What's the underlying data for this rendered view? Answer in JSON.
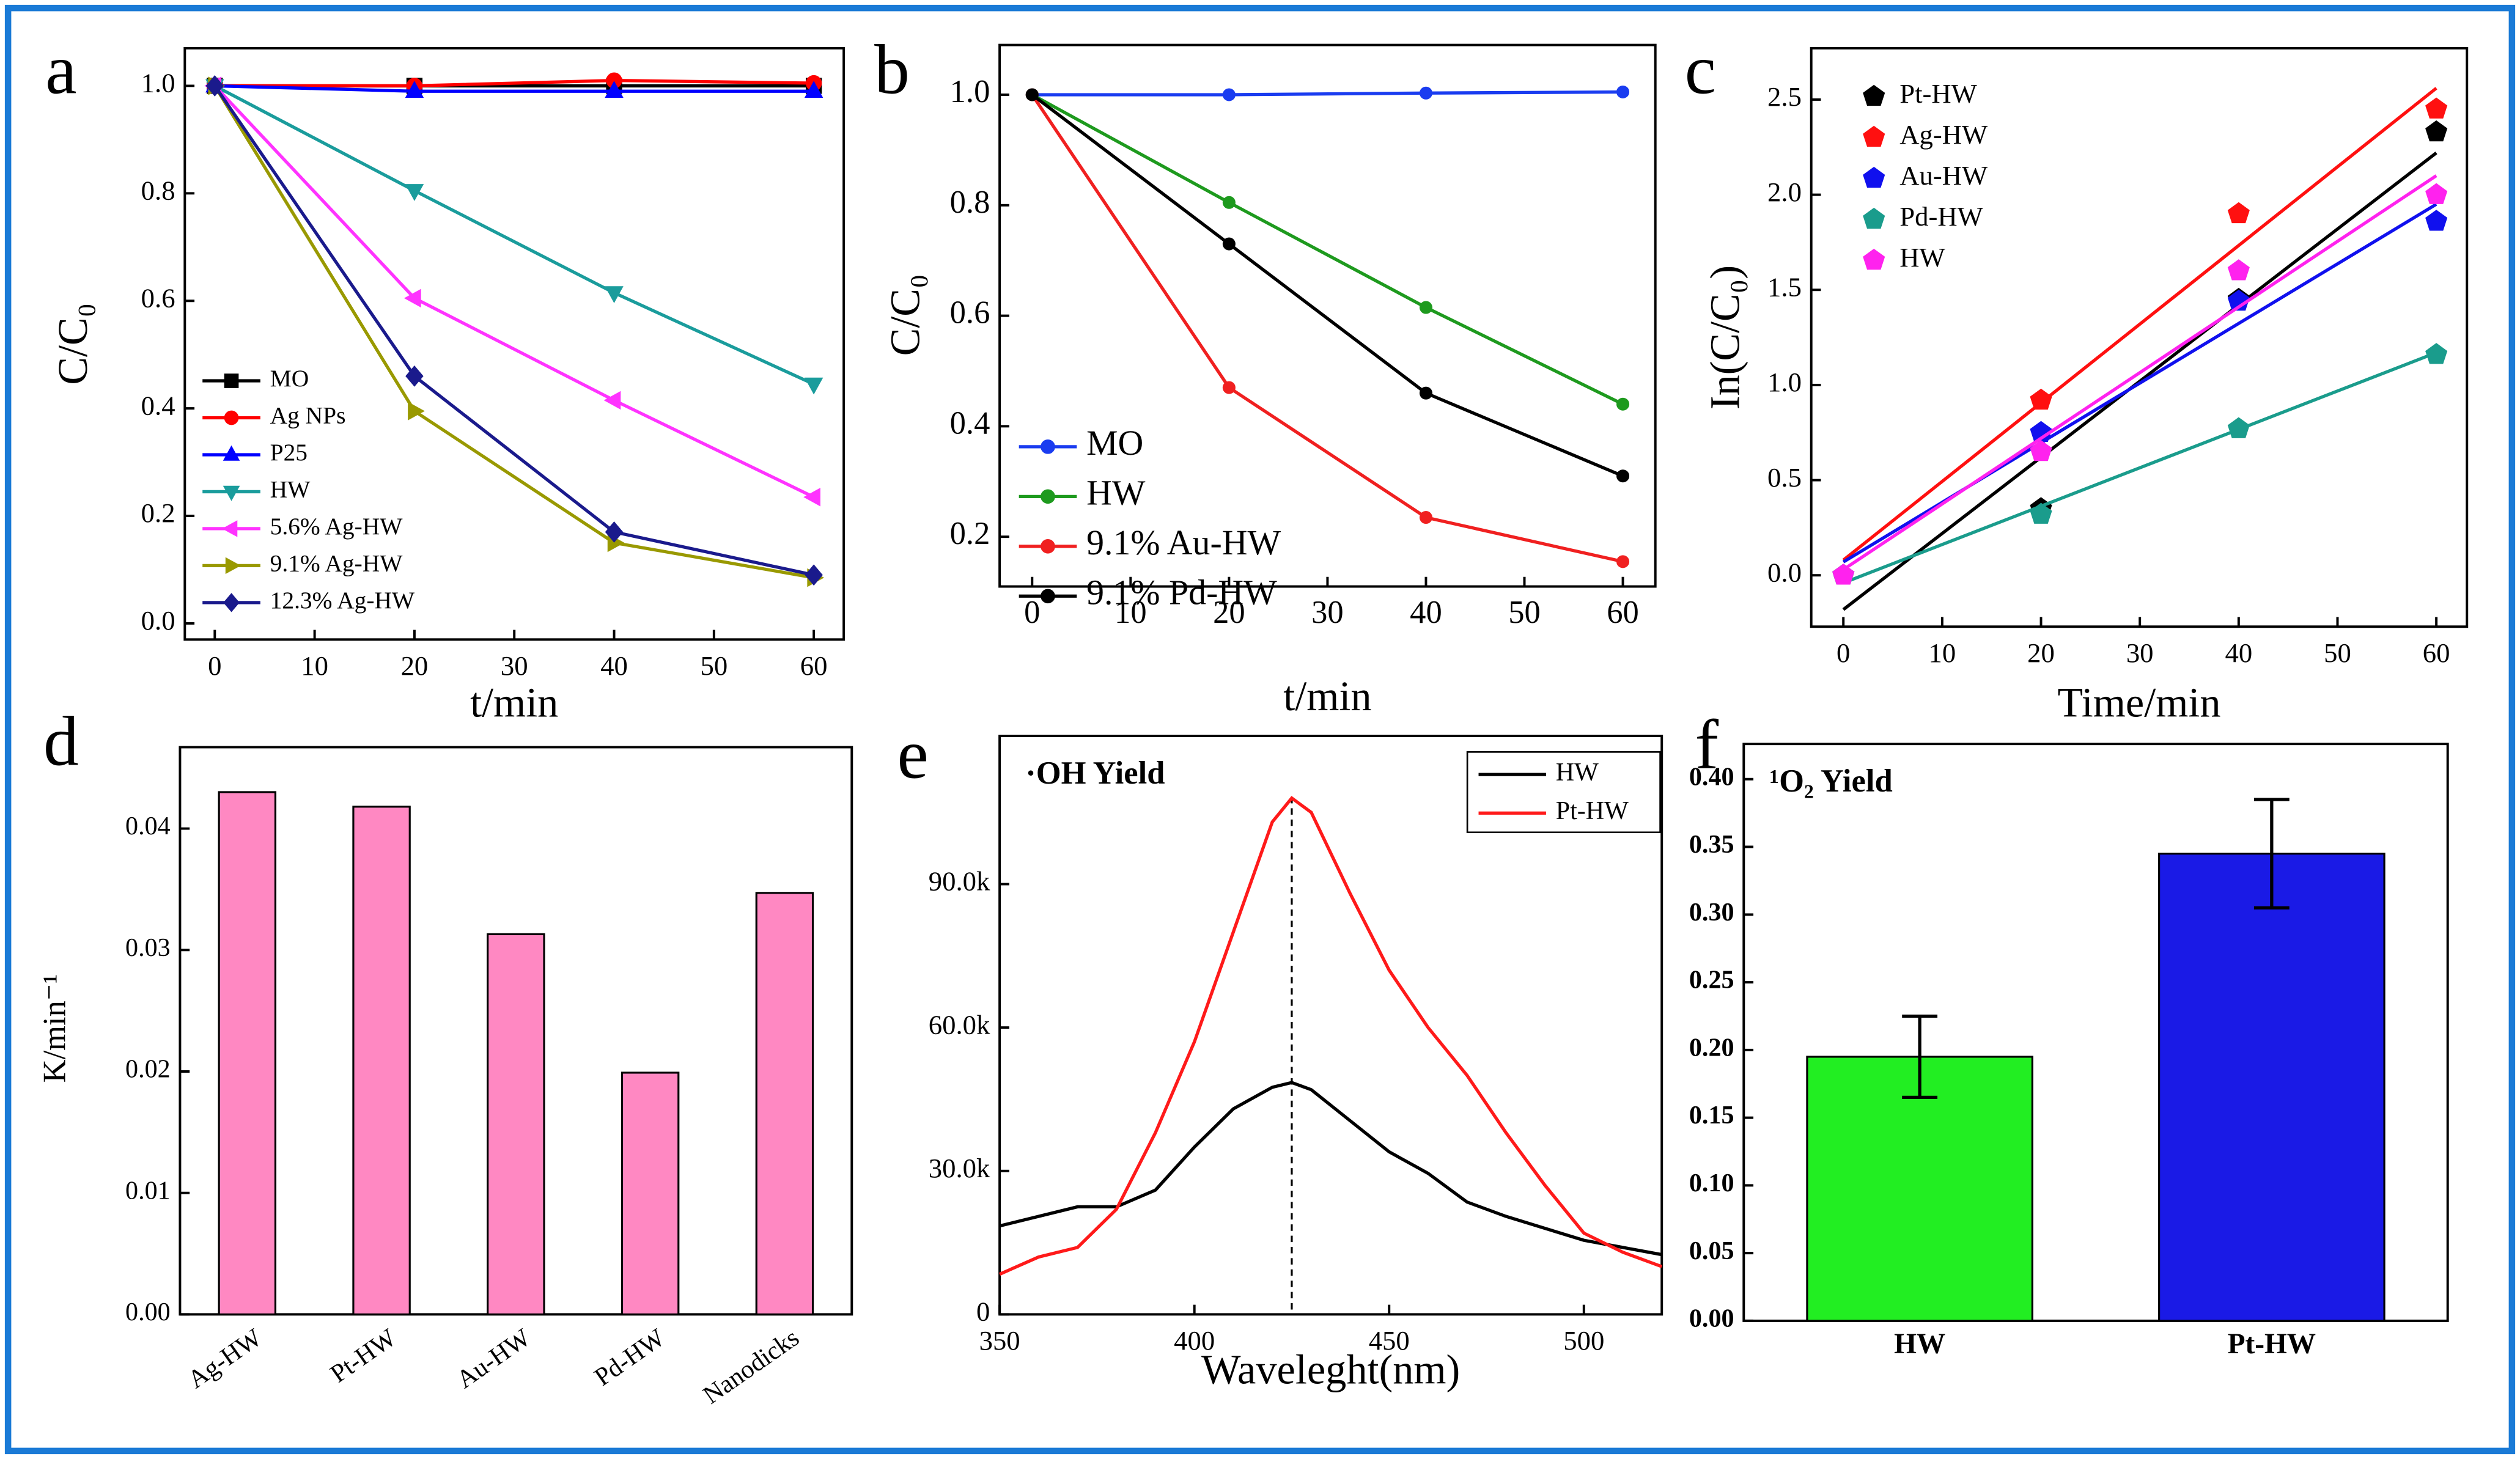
{
  "chart_data": [
    {
      "type": "line",
      "panel": "a",
      "xlabel": "t/min",
      "ylabel": "C/C₀",
      "x": [
        0,
        20,
        40,
        60
      ],
      "xlim": [
        -3,
        63
      ],
      "xticks": [
        0,
        10,
        20,
        30,
        40,
        50,
        60
      ],
      "ylim": [
        -0.03,
        1.07
      ],
      "yticks": [
        {
          "value": 0,
          "label": "0.0"
        },
        0.2,
        0.4,
        0.6,
        0.8,
        {
          "value": 1,
          "label": "1.0"
        }
      ],
      "legend": "lower left",
      "series": [
        {
          "name": "MO",
          "color": "#000000",
          "marker": "square",
          "values": [
            1,
            1,
            1,
            1
          ]
        },
        {
          "name": "Ag NPs",
          "color": "#ff0000",
          "marker": "circle",
          "values": [
            1,
            1,
            1.01,
            1.005
          ]
        },
        {
          "name": "P25",
          "color": "#0000ff",
          "marker": "triangle-up",
          "values": [
            1,
            0.99,
            0.99,
            0.99
          ]
        },
        {
          "name": "HW",
          "color": "#1a9c9c",
          "marker": "triangle-down",
          "values": [
            1,
            0.805,
            0.615,
            0.445
          ]
        },
        {
          "name": "5.6% Ag-HW",
          "color": "#ff33ff",
          "marker": "triangle-left",
          "values": [
            1,
            0.605,
            0.415,
            0.235
          ]
        },
        {
          "name": "9.1% Ag-HW",
          "color": "#999900",
          "marker": "triangle-right",
          "values": [
            1,
            0.395,
            0.15,
            0.085
          ]
        },
        {
          "name": "12.3% Ag-HW",
          "color": "#1a1a8c",
          "marker": "diamond",
          "values": [
            1,
            0.46,
            0.17,
            0.09
          ]
        }
      ]
    },
    {
      "type": "line",
      "panel": "b",
      "xlabel": "t/min",
      "ylabel": "C/C₀",
      "x": [
        0,
        20,
        40,
        60
      ],
      "xlim": [
        -3.3,
        63.3
      ],
      "xticks": [
        0,
        10,
        20,
        30,
        40,
        50,
        60
      ],
      "ylim": [
        0.11,
        1.09
      ],
      "yticks": [
        0.2,
        0.4,
        0.6,
        0.8,
        {
          "value": 1,
          "label": "1.0"
        }
      ],
      "legend": "lower left",
      "series": [
        {
          "name": "MO",
          "color": "#1a3cf0",
          "marker": "circle",
          "values": [
            1,
            1,
            1.003,
            1.005
          ]
        },
        {
          "name": "HW",
          "color": "#1e9a1e",
          "marker": "circle",
          "values": [
            1,
            0.805,
            0.615,
            0.44
          ]
        },
        {
          "name": "9.1% Au-HW",
          "color": "#f02020",
          "marker": "circle",
          "values": [
            1,
            0.47,
            0.235,
            0.155
          ]
        },
        {
          "name": "9.1% Pd-HW",
          "color": "#000000",
          "marker": "circle",
          "values": [
            1,
            0.73,
            0.46,
            0.31
          ]
        }
      ]
    },
    {
      "type": "scatter",
      "panel": "c",
      "xlabel": "Time/min",
      "ylabel": "In(C/C₀)",
      "x": [
        0,
        20,
        40,
        60
      ],
      "xlim": [
        -3.25,
        63.1
      ],
      "xticks": [
        0,
        10,
        20,
        30,
        40,
        50,
        60
      ],
      "ylim": [
        -0.27,
        2.77
      ],
      "yticks": [
        {
          "value": 0,
          "label": "0.0"
        },
        0.5,
        {
          "value": 1,
          "label": "1.0"
        },
        1.5,
        {
          "value": 2,
          "label": "2.0"
        },
        2.5
      ],
      "legend": "upper left",
      "series": [
        {
          "name": "Pt-HW",
          "color": "#000000",
          "marker": "pentagon",
          "values": [
            0,
            0.35,
            1.45,
            2.33
          ],
          "fit": {
            "x": [
              0,
              60
            ],
            "values": [
              -0.18,
              2.22
            ]
          }
        },
        {
          "name": "Ag-HW",
          "color": "#ff1010",
          "marker": "pentagon",
          "values": [
            0,
            0.92,
            1.9,
            2.45
          ],
          "fit": {
            "x": [
              0,
              60
            ],
            "values": [
              0.08,
              2.56
            ]
          }
        },
        {
          "name": "Au-HW",
          "color": "#1010ee",
          "marker": "pentagon",
          "values": [
            0,
            0.75,
            1.44,
            1.86
          ],
          "fit": {
            "x": [
              0,
              60
            ],
            "values": [
              0.07,
              1.95
            ]
          }
        },
        {
          "name": "Pd-HW",
          "color": "#1a9c8c",
          "marker": "pentagon",
          "values": [
            0,
            0.32,
            0.77,
            1.16
          ],
          "fit": {
            "x": [
              0,
              60
            ],
            "values": [
              -0.04,
              1.17
            ]
          }
        },
        {
          "name": "HW",
          "color": "#ff22ee",
          "marker": "pentagon",
          "values": [
            0,
            0.65,
            1.6,
            2.0
          ],
          "fit": {
            "x": [
              0,
              60
            ],
            "values": [
              0.03,
              2.1
            ]
          }
        }
      ]
    },
    {
      "type": "bar",
      "panel": "d",
      "ylabel": "K/min⁻¹",
      "categories": [
        "Ag-HW",
        "Pt-HW",
        "Au-HW",
        "Pd-HW",
        "Nanodicks"
      ],
      "values": [
        0.043,
        0.0418,
        0.0313,
        0.0199,
        0.0347
      ],
      "color": "#ff88c2",
      "ylim": [
        0,
        0.0467
      ],
      "yticks": [
        {
          "value": 0,
          "label": "0.00"
        },
        0.01,
        0.02,
        0.03,
        0.04
      ]
    },
    {
      "type": "line",
      "panel": "e",
      "xlabel": "Waveleght(nm)",
      "annotation": "·OH Yield",
      "x": [
        350,
        360,
        370,
        380,
        390,
        400,
        410,
        420,
        425,
        430,
        440,
        450,
        460,
        470,
        480,
        490,
        500,
        510,
        520
      ],
      "xlim": [
        350,
        520
      ],
      "xticks": [
        350,
        400,
        450,
        500
      ],
      "ylim": [
        0,
        121000
      ],
      "yticks": [
        0,
        {
          "value": 30000,
          "label": "30.0k"
        },
        {
          "value": 60000,
          "label": "60.0k"
        },
        {
          "value": 90000,
          "label": "90.0k"
        }
      ],
      "vline": 425,
      "legend": "upper right",
      "series": [
        {
          "name": "HW",
          "color": "#000000",
          "values": [
            18500,
            20500,
            22500,
            22500,
            26000,
            35000,
            43000,
            47500,
            48500,
            47000,
            40500,
            34000,
            29500,
            23500,
            20500,
            18000,
            15500,
            14000,
            12500
          ]
        },
        {
          "name": "Pt-HW",
          "color": "#ff1a1a",
          "values": [
            8400,
            12000,
            14000,
            22000,
            38000,
            57000,
            80000,
            103000,
            108000,
            105000,
            88000,
            72000,
            60000,
            50000,
            38000,
            27000,
            17000,
            13000,
            10000
          ]
        }
      ]
    },
    {
      "type": "bar",
      "panel": "f",
      "annotation": "¹O₂ Yield",
      "categories": [
        "HW",
        "Pt-HW"
      ],
      "values": [
        0.195,
        0.345
      ],
      "errors": [
        0.03,
        0.04
      ],
      "colors": [
        "#22ee22",
        "#1a1ae6"
      ],
      "ylim": [
        0,
        0.426
      ],
      "yticks": [
        {
          "value": 0,
          "label": "0.00"
        },
        0.05,
        {
          "value": 0.1,
          "label": "0.10"
        },
        0.15,
        {
          "value": 0.2,
          "label": "0.20"
        },
        0.25,
        {
          "value": 0.3,
          "label": "0.30"
        },
        0.35,
        {
          "value": 0.4,
          "label": "0.40"
        }
      ]
    }
  ]
}
